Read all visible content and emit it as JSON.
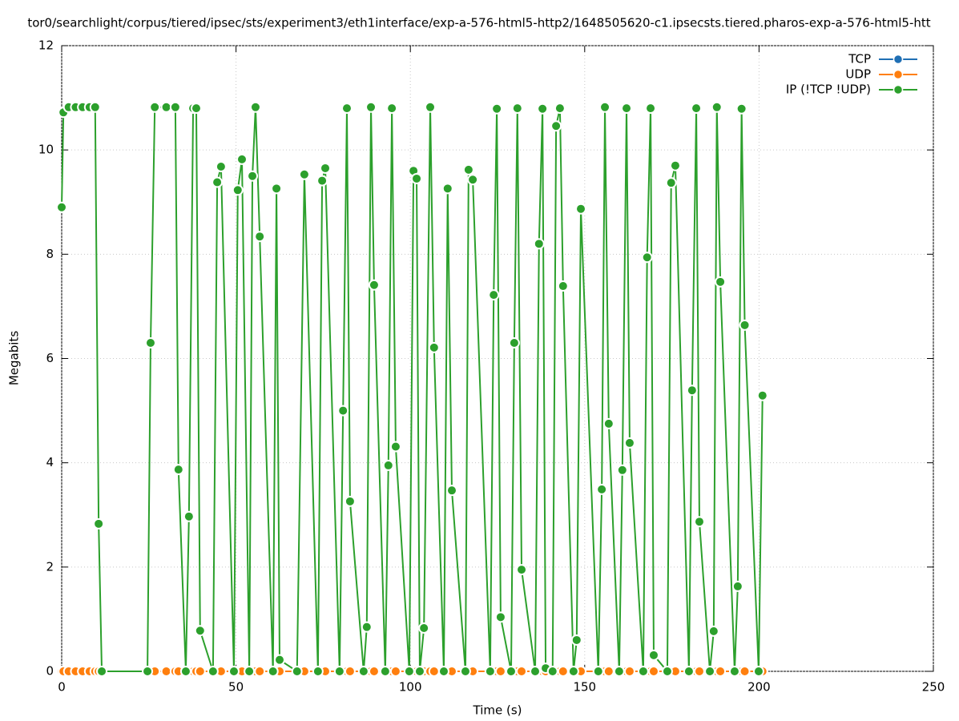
{
  "chart_data": {
    "type": "line",
    "title": "tor0/searchlight/corpus/tiered/ipsec/sts/experiment3/eth1interface/exp-a-576-html5-http2/1648505620-c1.ipsecsts.tiered.pharos-exp-a-576-html5-htt",
    "x_label": "Time (s)",
    "y_label": "Megabits",
    "xlim": [
      0,
      250
    ],
    "xticks": [
      0,
      50,
      100,
      150,
      200,
      250
    ],
    "ylim": [
      0,
      12
    ],
    "yticks": [
      0,
      2,
      4,
      6,
      8,
      10,
      12
    ],
    "grid": true,
    "legend": "top-right",
    "x": [
      0,
      0.5,
      2,
      4,
      6,
      8,
      9.6,
      10.6,
      11.5,
      24.6,
      25.5,
      26.7,
      30,
      32.6,
      33.5,
      35.6,
      36.5,
      37.7,
      38.6,
      39.7,
      43.4,
      44.6,
      45.7,
      49.4,
      50.5,
      51.7,
      53.8,
      54.7,
      55.6,
      56.8,
      60.6,
      61.6,
      62.5,
      67.5,
      69.6,
      73.5,
      74.7,
      75.6,
      79.7,
      80.7,
      81.8,
      82.7,
      86.6,
      87.5,
      88.7,
      89.6,
      92.8,
      93.7,
      94.7,
      95.8,
      99.7,
      100.9,
      101.8,
      102.7,
      103.9,
      105.7,
      106.8,
      109.6,
      110.7,
      111.9,
      115.8,
      116.7,
      117.9,
      122.9,
      123.9,
      124.8,
      125.9,
      128.9,
      129.8,
      130.7,
      131.9,
      135.8,
      136.9,
      137.9,
      138.8,
      140.8,
      141.8,
      142.9,
      143.8,
      146.8,
      147.7,
      148.9,
      153.9,
      154.9,
      155.8,
      156.9,
      159.9,
      160.8,
      162,
      162.9,
      166.8,
      167.9,
      168.9,
      169.8,
      173.7,
      174.8,
      176,
      179.9,
      180.8,
      182,
      182.9,
      185.9,
      187,
      187.9,
      188.9,
      193,
      193.9,
      195,
      195.9,
      199.9,
      201
    ],
    "series": [
      {
        "name": "TCP",
        "color": "#1f6fb4",
        "values": [
          0,
          0,
          0,
          0,
          0,
          0,
          0,
          0,
          0,
          0,
          0,
          0,
          0,
          0,
          0,
          0,
          0,
          0,
          0,
          0,
          0,
          0,
          0,
          0,
          0,
          0,
          0,
          0,
          0,
          0,
          0,
          0,
          0,
          0,
          0,
          0,
          0,
          0,
          0,
          0,
          0,
          0,
          0,
          0,
          0,
          0,
          0,
          0,
          0,
          0,
          0,
          0,
          0,
          0,
          0,
          0,
          0,
          0,
          0,
          0,
          0,
          0,
          0,
          0,
          0,
          0,
          0,
          0,
          0,
          0,
          0,
          0,
          0,
          0,
          0,
          0,
          0,
          0,
          0,
          0,
          0,
          0,
          0,
          0,
          0,
          0,
          0,
          0,
          0,
          0,
          0,
          0,
          0,
          0,
          0,
          0,
          0,
          0,
          0,
          0,
          0,
          0,
          0,
          0,
          0,
          0,
          0,
          0,
          0,
          0,
          0
        ]
      },
      {
        "name": "UDP",
        "color": "#ff7f0e",
        "values": [
          0,
          0,
          0,
          0,
          0,
          0,
          0,
          0,
          0,
          0,
          0,
          0,
          0,
          0,
          0,
          0,
          0,
          0,
          0,
          0,
          0,
          0,
          0,
          0,
          0,
          0,
          0,
          0,
          0,
          0,
          0,
          0,
          0,
          0,
          0,
          0,
          0,
          0,
          0,
          0,
          0,
          0,
          0,
          0,
          0,
          0,
          0,
          0,
          0,
          0,
          0,
          0,
          0,
          0,
          0,
          0,
          0,
          0,
          0,
          0,
          0,
          0,
          0,
          0,
          0,
          0,
          0,
          0,
          0,
          0,
          0,
          0,
          0,
          0,
          0,
          0,
          0,
          0,
          0,
          0,
          0,
          0,
          0,
          0,
          0,
          0,
          0,
          0,
          0,
          0,
          0,
          0,
          0,
          0,
          0,
          0,
          0,
          0,
          0,
          0,
          0,
          0,
          0,
          0,
          0,
          0,
          0,
          0,
          0,
          0,
          0
        ]
      },
      {
        "name": "IP (!TCP  !UDP)",
        "color": "#2ca02c",
        "values": [
          8.9,
          10.72,
          10.82,
          10.82,
          10.82,
          10.82,
          10.82,
          2.83,
          0,
          0,
          6.3,
          10.82,
          10.82,
          10.82,
          3.87,
          0,
          2.97,
          10.8,
          10.8,
          0.78,
          0,
          9.38,
          9.68,
          0,
          9.23,
          9.82,
          0,
          9.5,
          10.82,
          8.34,
          0,
          9.26,
          0.22,
          0,
          9.53,
          0,
          9.41,
          9.65,
          0,
          5.0,
          10.8,
          3.26,
          0,
          0.85,
          10.82,
          7.41,
          0,
          3.95,
          10.8,
          4.31,
          0,
          9.6,
          9.45,
          0,
          0.83,
          10.82,
          6.21,
          0,
          9.26,
          3.47,
          0,
          9.62,
          9.43,
          0,
          7.22,
          10.79,
          1.04,
          0,
          6.3,
          10.8,
          1.95,
          0,
          8.2,
          10.79,
          0.06,
          0,
          10.46,
          10.8,
          7.39,
          0,
          0.6,
          8.87,
          0,
          3.49,
          10.82,
          4.75,
          0,
          3.86,
          10.8,
          4.38,
          0,
          7.94,
          10.8,
          0.31,
          0,
          9.37,
          9.7,
          0,
          5.39,
          10.8,
          2.87,
          0,
          0.77,
          10.82,
          7.47,
          0,
          1.63,
          10.79,
          6.64,
          0,
          5.29
        ]
      }
    ]
  }
}
